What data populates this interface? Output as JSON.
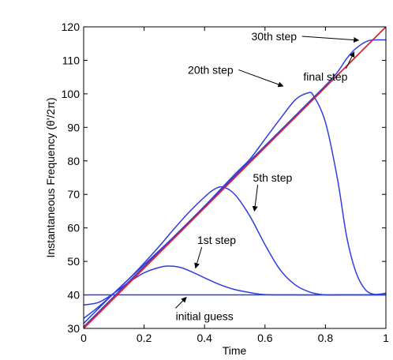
{
  "chart_data": {
    "type": "line",
    "title": "",
    "xlabel": "Time",
    "ylabel": "Instantaneous Frequency (θ'/2π)",
    "xlim": [
      0,
      1
    ],
    "ylim": [
      30,
      120
    ],
    "xticks": [
      "0",
      "0.2",
      "0.4",
      "0.6",
      "0.8",
      "1"
    ],
    "yticks": [
      "30",
      "40",
      "50",
      "60",
      "70",
      "80",
      "90",
      "100",
      "110",
      "120"
    ],
    "grid": false,
    "legend": "none",
    "colors": {
      "estimates": "#2d3de0",
      "true": "#e0202a"
    },
    "series": [
      {
        "x": [
          0,
          1
        ],
        "y": [
          30,
          120
        ]
      },
      {
        "x": [
          0,
          1
        ],
        "y": [
          40,
          40
        ]
      },
      {
        "x": [
          0,
          0.05,
          0.1,
          0.15,
          0.2,
          0.25,
          0.28,
          0.32,
          0.36,
          0.4,
          0.45,
          0.5,
          0.55,
          0.6,
          0.7,
          0.8,
          0.9,
          1.0
        ],
        "y": [
          37,
          37.8,
          40.5,
          43.8,
          46.6,
          48.2,
          48.6,
          48.2,
          46.8,
          45.1,
          43.1,
          41.6,
          40.7,
          40.1,
          40.0,
          40.0,
          40.0,
          40.0
        ]
      },
      {
        "x": [
          0,
          0.05,
          0.1,
          0.15,
          0.2,
          0.25,
          0.3,
          0.35,
          0.4,
          0.43,
          0.46,
          0.5,
          0.55,
          0.6,
          0.65,
          0.7,
          0.75,
          0.8,
          0.85,
          0.9,
          1.0
        ],
        "y": [
          33,
          36.5,
          40.5,
          44.8,
          49.5,
          54.5,
          59.8,
          64.8,
          69.2,
          71.4,
          72.2,
          70.0,
          63.5,
          55.0,
          47.5,
          43.0,
          40.8,
          40.0,
          40.0,
          40.0,
          40.0
        ]
      },
      {
        "x": [
          0,
          0.1,
          0.2,
          0.3,
          0.4,
          0.5,
          0.55,
          0.6,
          0.65,
          0.7,
          0.74,
          0.76,
          0.8,
          0.84,
          0.87,
          0.9,
          0.93,
          0.96,
          1.0
        ],
        "y": [
          31.5,
          40.5,
          49,
          57.5,
          66.5,
          76,
          80.5,
          86.5,
          92.5,
          98.2,
          100.2,
          99.5,
          91.5,
          74.5,
          57.5,
          47.0,
          41.8,
          40.2,
          40.5
        ]
      },
      {
        "x": [
          0,
          0.1,
          0.2,
          0.3,
          0.4,
          0.5,
          0.6,
          0.7,
          0.75,
          0.8,
          0.84,
          0.87,
          0.9,
          0.94,
          0.97,
          1.0
        ],
        "y": [
          30.5,
          39.5,
          48.5,
          57.5,
          66.5,
          75.5,
          84.5,
          93.5,
          98,
          102.5,
          106.5,
          110.5,
          113.5,
          115.8,
          116.1,
          116.1
        ]
      }
    ],
    "annotations": [
      {
        "text": "30th step",
        "x": 0.63,
        "y": 116.0,
        "ax": 0.91,
        "ay": 116.0
      },
      {
        "text": "20th step",
        "x": 0.42,
        "y": 106.0,
        "ax": 0.66,
        "ay": 102.3
      },
      {
        "text": "final step",
        "x": 0.8,
        "y": 104.0,
        "ax": 0.895,
        "ay": 112.5
      },
      {
        "text": "5th step",
        "x": 0.625,
        "y": 73.8,
        "ax": 0.565,
        "ay": 65.0
      },
      {
        "text": "1st step",
        "x": 0.44,
        "y": 55.2,
        "ax": 0.37,
        "ay": 48.0
      },
      {
        "text": "initial guess",
        "x": 0.4,
        "y": 32.5,
        "ax": 0.34,
        "ay": 39.3
      }
    ]
  }
}
